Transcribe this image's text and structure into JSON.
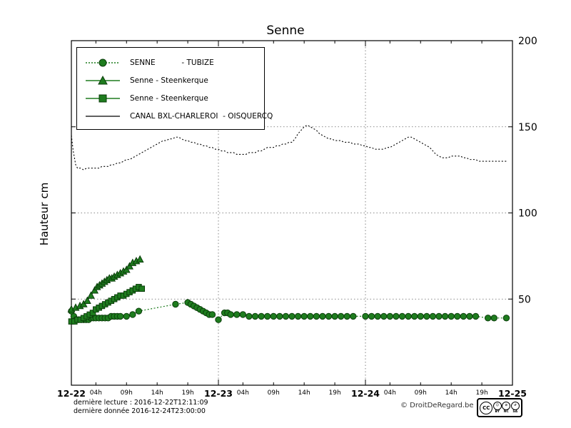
{
  "page": {
    "title": "Senne",
    "ylabel": "Hauteur cm"
  },
  "legend": {
    "items": [
      {
        "label": "SENNE           - TUBIZE",
        "marker": "circle",
        "color": "#1e7c1e"
      },
      {
        "label": "Senne - Steenkerque",
        "marker": "triangle",
        "color": "#1e7c1e"
      },
      {
        "label": "Senne - Steenkerque",
        "marker": "square",
        "color": "#1e7c1e"
      },
      {
        "label": "CANAL BXL-CHARLEROI  - OISQUERCQ",
        "marker": "line",
        "color": "#000000"
      }
    ]
  },
  "footer": {
    "lecture": "dernière lecture : 2016-12-22T12:11:09",
    "donnee": "dernière donnée  2016-12-24T23:00:00",
    "copyright": "© DroitDeRegard.be",
    "cc": {
      "cc": "CC",
      "by": "BY",
      "nc": "NC",
      "sa": "SA"
    }
  },
  "chart_data": {
    "type": "line",
    "title": "Senne",
    "xlabel": "",
    "ylabel": "Hauteur cm",
    "ylim": [
      0,
      200
    ],
    "yticks": [
      50,
      100,
      150,
      200
    ],
    "x_unit": "hours since 2016-12-22 00:00",
    "xlim": [
      0,
      72
    ],
    "day_labels": [
      {
        "hour": 0,
        "label": "12-22"
      },
      {
        "hour": 24,
        "label": "12-23"
      },
      {
        "hour": 48,
        "label": "12-24"
      },
      {
        "hour": 72,
        "label": "12-25"
      }
    ],
    "hour_ticks": [
      {
        "hour": 4,
        "label": "04h"
      },
      {
        "hour": 9,
        "label": "09h"
      },
      {
        "hour": 14,
        "label": "14h"
      },
      {
        "hour": 19,
        "label": "19h"
      },
      {
        "hour": 28,
        "label": "04h"
      },
      {
        "hour": 33,
        "label": "09h"
      },
      {
        "hour": 38,
        "label": "14h"
      },
      {
        "hour": 43,
        "label": "19h"
      },
      {
        "hour": 52,
        "label": "04h"
      },
      {
        "hour": 57,
        "label": "09h"
      },
      {
        "hour": 62,
        "label": "14h"
      },
      {
        "hour": 67,
        "label": "19h"
      }
    ],
    "grid": {
      "h_lines": [
        50,
        100,
        150
      ],
      "v_lines": [
        24,
        48
      ]
    },
    "legend_position": "top-left",
    "series": [
      {
        "name": "SENNE - TUBIZE",
        "marker": "circle",
        "color": "#1e7c1e",
        "line_style": "dotted",
        "points": [
          [
            0,
            43
          ],
          [
            0.4,
            40
          ],
          [
            0.8,
            38
          ],
          [
            1.2,
            38
          ],
          [
            1.6,
            38
          ],
          [
            2,
            38
          ],
          [
            2.4,
            38
          ],
          [
            2.8,
            38
          ],
          [
            3.2,
            39
          ],
          [
            3.6,
            39
          ],
          [
            4,
            39
          ],
          [
            4.5,
            39
          ],
          [
            5,
            39
          ],
          [
            5.5,
            39
          ],
          [
            6,
            39
          ],
          [
            6.5,
            40
          ],
          [
            7,
            40
          ],
          [
            7.5,
            40
          ],
          [
            8,
            40
          ],
          [
            9,
            40
          ],
          [
            10,
            41
          ],
          [
            11,
            43
          ],
          [
            17,
            47
          ],
          [
            19,
            48
          ],
          [
            19.5,
            47
          ],
          [
            20,
            46
          ],
          [
            20.5,
            45
          ],
          [
            21,
            44
          ],
          [
            21.5,
            43
          ],
          [
            22,
            42
          ],
          [
            22.5,
            41
          ],
          [
            23,
            41
          ],
          [
            24,
            38
          ],
          [
            25,
            42
          ],
          [
            25.5,
            42
          ],
          [
            26,
            41
          ],
          [
            27,
            41
          ],
          [
            28,
            41
          ],
          [
            29,
            40
          ],
          [
            30,
            40
          ],
          [
            31,
            40
          ],
          [
            32,
            40
          ],
          [
            33,
            40
          ],
          [
            34,
            40
          ],
          [
            35,
            40
          ],
          [
            36,
            40
          ],
          [
            37,
            40
          ],
          [
            38,
            40
          ],
          [
            39,
            40
          ],
          [
            40,
            40
          ],
          [
            41,
            40
          ],
          [
            42,
            40
          ],
          [
            43,
            40
          ],
          [
            44,
            40
          ],
          [
            45,
            40
          ],
          [
            46,
            40
          ],
          [
            48,
            40
          ],
          [
            49,
            40
          ],
          [
            50,
            40
          ],
          [
            51,
            40
          ],
          [
            52,
            40
          ],
          [
            53,
            40
          ],
          [
            54,
            40
          ],
          [
            55,
            40
          ],
          [
            56,
            40
          ],
          [
            57,
            40
          ],
          [
            58,
            40
          ],
          [
            59,
            40
          ],
          [
            60,
            40
          ],
          [
            61,
            40
          ],
          [
            62,
            40
          ],
          [
            63,
            40
          ],
          [
            64,
            40
          ],
          [
            65,
            40
          ],
          [
            66,
            40
          ],
          [
            68,
            39
          ],
          [
            69,
            39
          ],
          [
            71,
            39
          ]
        ]
      },
      {
        "name": "Senne - Steenkerque (triangles)",
        "marker": "triangle",
        "color": "#1e7c1e",
        "line_style": "solid",
        "points": [
          [
            0,
            44
          ],
          [
            0.7,
            45
          ],
          [
            1.4,
            46
          ],
          [
            2,
            47
          ],
          [
            2.6,
            49
          ],
          [
            3.2,
            52
          ],
          [
            3.8,
            55
          ],
          [
            4.2,
            57
          ],
          [
            4.6,
            58
          ],
          [
            5,
            59
          ],
          [
            5.4,
            60
          ],
          [
            5.8,
            61
          ],
          [
            6.2,
            62
          ],
          [
            6.6,
            62
          ],
          [
            7,
            63
          ],
          [
            7.5,
            64
          ],
          [
            8,
            65
          ],
          [
            8.5,
            66
          ],
          [
            9,
            67
          ],
          [
            9.5,
            69
          ],
          [
            10,
            71
          ],
          [
            10.6,
            72
          ],
          [
            11.2,
            73
          ]
        ]
      },
      {
        "name": "Senne - Steenkerque (squares)",
        "marker": "square",
        "color": "#1e7c1e",
        "line_style": "solid",
        "points": [
          [
            0,
            37
          ],
          [
            0.5,
            37
          ],
          [
            1,
            38
          ],
          [
            1.5,
            38
          ],
          [
            2,
            39
          ],
          [
            2.5,
            40
          ],
          [
            3,
            41
          ],
          [
            3.5,
            42
          ],
          [
            4,
            44
          ],
          [
            4.5,
            45
          ],
          [
            5,
            46
          ],
          [
            5.5,
            47
          ],
          [
            6,
            48
          ],
          [
            6.5,
            49
          ],
          [
            7,
            50
          ],
          [
            7.5,
            51
          ],
          [
            8,
            52
          ],
          [
            8.5,
            52
          ],
          [
            9,
            53
          ],
          [
            9.5,
            54
          ],
          [
            10,
            55
          ],
          [
            10.5,
            56
          ],
          [
            11,
            57
          ],
          [
            11.5,
            56
          ]
        ]
      },
      {
        "name": "CANAL BXL-CHARLEROI - OISQUERCQ",
        "marker": "none",
        "color": "#000000",
        "line_style": "dotted",
        "points": [
          [
            0,
            145
          ],
          [
            0.3,
            136
          ],
          [
            0.7,
            128
          ],
          [
            1,
            126
          ],
          [
            1.5,
            126
          ],
          [
            2,
            125
          ],
          [
            2.5,
            126
          ],
          [
            3,
            126
          ],
          [
            3.5,
            126
          ],
          [
            4,
            126
          ],
          [
            4.5,
            126
          ],
          [
            5,
            127
          ],
          [
            5.5,
            127
          ],
          [
            6,
            127
          ],
          [
            6.5,
            128
          ],
          [
            7,
            128
          ],
          [
            7.5,
            129
          ],
          [
            8,
            129
          ],
          [
            8.5,
            130
          ],
          [
            9,
            131
          ],
          [
            9.5,
            131
          ],
          [
            10,
            132
          ],
          [
            10.5,
            133
          ],
          [
            11,
            134
          ],
          [
            11.5,
            135
          ],
          [
            12,
            136
          ],
          [
            12.5,
            137
          ],
          [
            13,
            138
          ],
          [
            13.5,
            139
          ],
          [
            14,
            140
          ],
          [
            14.5,
            141
          ],
          [
            15,
            142
          ],
          [
            15.5,
            142
          ],
          [
            16,
            143
          ],
          [
            16.5,
            143
          ],
          [
            17,
            144
          ],
          [
            17.5,
            144
          ],
          [
            18,
            143
          ],
          [
            18.5,
            142
          ],
          [
            19,
            142
          ],
          [
            19.5,
            141
          ],
          [
            20,
            141
          ],
          [
            20.5,
            140
          ],
          [
            21,
            140
          ],
          [
            21.5,
            139
          ],
          [
            22,
            139
          ],
          [
            22.5,
            138
          ],
          [
            23,
            138
          ],
          [
            23.5,
            137
          ],
          [
            24,
            137
          ],
          [
            24.5,
            136
          ],
          [
            25,
            136
          ],
          [
            25.5,
            135
          ],
          [
            26,
            135
          ],
          [
            26.5,
            135
          ],
          [
            27,
            134
          ],
          [
            27.5,
            134
          ],
          [
            28,
            134
          ],
          [
            28.5,
            134
          ],
          [
            29,
            135
          ],
          [
            29.5,
            135
          ],
          [
            30,
            135
          ],
          [
            30.5,
            136
          ],
          [
            31,
            136
          ],
          [
            31.5,
            137
          ],
          [
            32,
            138
          ],
          [
            32.5,
            138
          ],
          [
            33,
            138
          ],
          [
            33.5,
            139
          ],
          [
            34,
            139
          ],
          [
            34.5,
            140
          ],
          [
            35,
            140
          ],
          [
            35.5,
            141
          ],
          [
            36,
            141
          ],
          [
            36.5,
            143
          ],
          [
            37,
            146
          ],
          [
            37.5,
            148
          ],
          [
            38,
            150
          ],
          [
            38.5,
            151
          ],
          [
            39,
            150
          ],
          [
            39.5,
            149
          ],
          [
            40,
            148
          ],
          [
            40.5,
            146
          ],
          [
            41,
            145
          ],
          [
            41.5,
            144
          ],
          [
            42,
            143
          ],
          [
            42.5,
            143
          ],
          [
            43,
            142
          ],
          [
            43.5,
            142
          ],
          [
            44,
            142
          ],
          [
            44.5,
            141
          ],
          [
            45,
            141
          ],
          [
            45.5,
            141
          ],
          [
            46,
            140
          ],
          [
            46.5,
            140
          ],
          [
            47,
            140
          ],
          [
            47.5,
            139
          ],
          [
            48,
            139
          ],
          [
            48.5,
            138
          ],
          [
            49,
            138
          ],
          [
            49.5,
            137
          ],
          [
            50,
            137
          ],
          [
            50.5,
            137
          ],
          [
            51,
            137
          ],
          [
            51.5,
            138
          ],
          [
            52,
            138
          ],
          [
            52.5,
            139
          ],
          [
            53,
            140
          ],
          [
            53.5,
            141
          ],
          [
            54,
            142
          ],
          [
            54.5,
            143
          ],
          [
            55,
            144
          ],
          [
            55.5,
            144
          ],
          [
            56,
            143
          ],
          [
            56.5,
            142
          ],
          [
            57,
            141
          ],
          [
            57.5,
            140
          ],
          [
            58,
            139
          ],
          [
            58.5,
            138
          ],
          [
            59,
            136
          ],
          [
            59.5,
            134
          ],
          [
            60,
            133
          ],
          [
            60.5,
            132
          ],
          [
            61,
            132
          ],
          [
            61.5,
            132
          ],
          [
            62,
            133
          ],
          [
            62.5,
            133
          ],
          [
            63,
            133
          ],
          [
            63.5,
            133
          ],
          [
            64,
            132
          ],
          [
            64.5,
            132
          ],
          [
            65,
            131
          ],
          [
            65.5,
            131
          ],
          [
            66,
            131
          ],
          [
            66.5,
            130
          ],
          [
            67,
            130
          ],
          [
            67.5,
            130
          ],
          [
            68,
            130
          ],
          [
            68.5,
            130
          ],
          [
            69,
            130
          ],
          [
            69.5,
            130
          ],
          [
            70,
            130
          ],
          [
            70.5,
            130
          ],
          [
            71,
            130
          ]
        ]
      }
    ]
  }
}
